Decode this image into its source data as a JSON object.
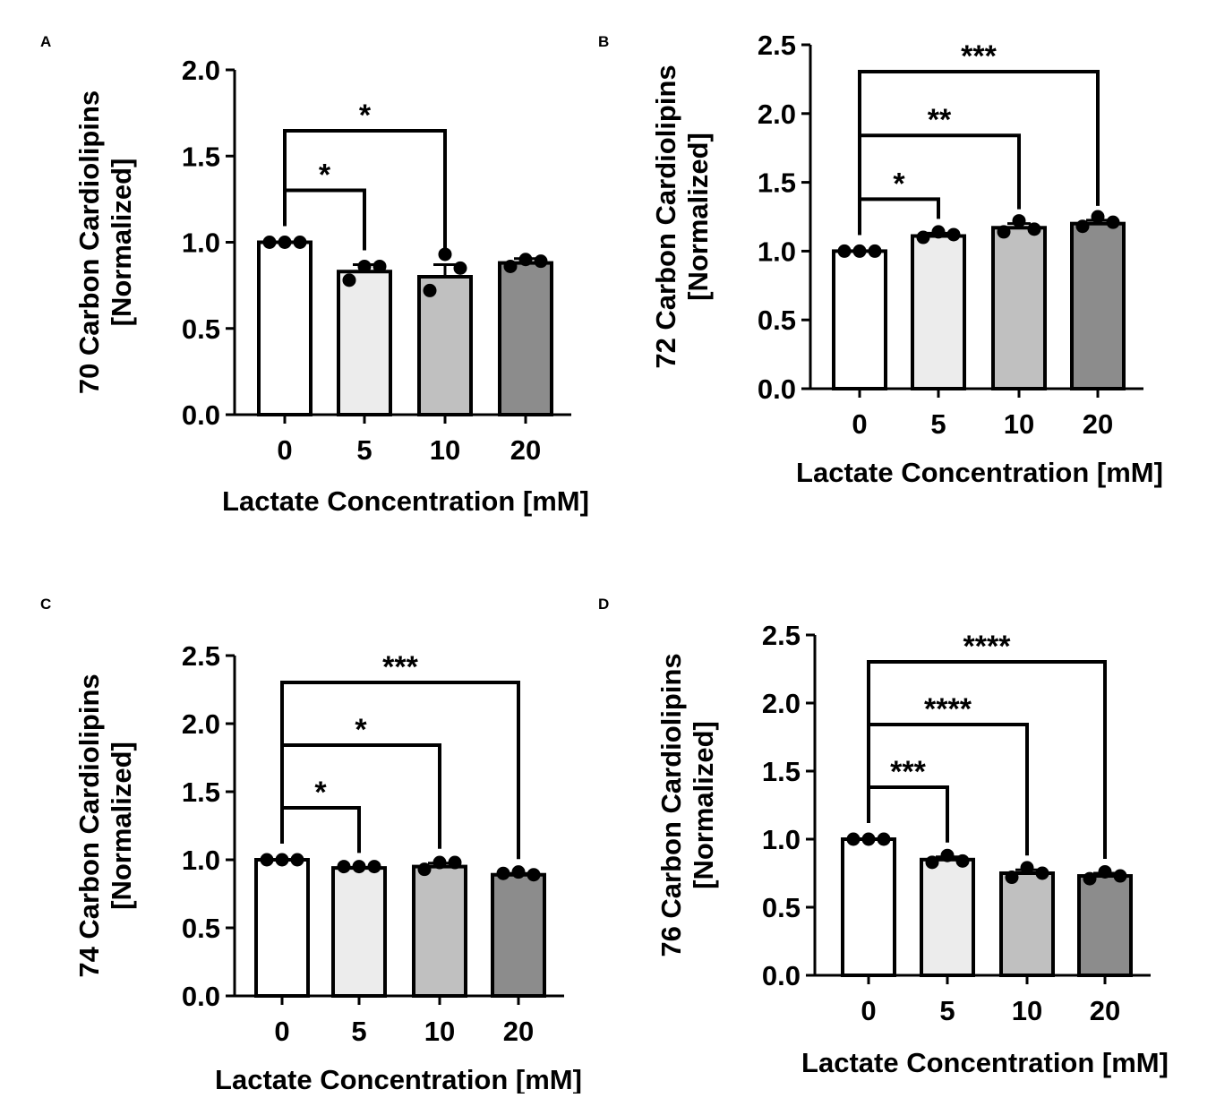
{
  "chart_data": [
    {
      "panel": "A",
      "type": "bar",
      "categories": [
        "0",
        "5",
        "10",
        "20"
      ],
      "values": [
        1.0,
        0.83,
        0.8,
        0.88
      ],
      "errors": [
        0.0,
        0.04,
        0.07,
        0.025
      ],
      "points": [
        [
          1.0,
          1.0,
          1.0
        ],
        [
          0.78,
          0.86,
          0.86
        ],
        [
          0.72,
          0.93,
          0.85
        ],
        [
          0.86,
          0.9,
          0.89
        ]
      ],
      "fill_colors": [
        "#ffffff",
        "#ececec",
        "#c0c0c0",
        "#8c8c8c"
      ],
      "ylabel": [
        "70 Carbon Cardiolipins",
        "[Normalized]"
      ],
      "xlabel": "Lactate Concentration [mM]",
      "ylim": [
        0,
        2.0
      ],
      "yticks": [
        "0.0",
        "0.5",
        "1.0",
        "1.5",
        "2.0"
      ],
      "significance": [
        {
          "from": "0",
          "to": "5",
          "label": "*"
        },
        {
          "from": "0",
          "to": "10",
          "label": "*"
        }
      ]
    },
    {
      "panel": "B",
      "type": "bar",
      "categories": [
        "0",
        "5",
        "10",
        "20"
      ],
      "values": [
        1.0,
        1.11,
        1.17,
        1.2
      ],
      "errors": [
        0.0,
        0.02,
        0.03,
        0.025
      ],
      "points": [
        [
          1.0,
          1.0,
          1.0
        ],
        [
          1.1,
          1.14,
          1.12
        ],
        [
          1.14,
          1.22,
          1.16
        ],
        [
          1.18,
          1.25,
          1.21
        ]
      ],
      "fill_colors": [
        "#ffffff",
        "#ececec",
        "#c0c0c0",
        "#8c8c8c"
      ],
      "ylabel": [
        "72 Carbon Cardiolipins",
        "[Normalized]"
      ],
      "xlabel": "Lactate Concentration [mM]",
      "ylim": [
        0,
        2.5
      ],
      "yticks": [
        "0.0",
        "0.5",
        "1.0",
        "1.5",
        "2.0",
        "2.5"
      ],
      "significance": [
        {
          "from": "0",
          "to": "5",
          "label": "*"
        },
        {
          "from": "0",
          "to": "10",
          "label": "**"
        },
        {
          "from": "0",
          "to": "20",
          "label": "***"
        }
      ]
    },
    {
      "panel": "C",
      "type": "bar",
      "categories": [
        "0",
        "5",
        "10",
        "20"
      ],
      "values": [
        1.0,
        0.94,
        0.95,
        0.89
      ],
      "errors": [
        0.0,
        0.005,
        0.025,
        0.01
      ],
      "points": [
        [
          1.0,
          1.0,
          1.0
        ],
        [
          0.95,
          0.95,
          0.95
        ],
        [
          0.93,
          0.98,
          0.98
        ],
        [
          0.9,
          0.91,
          0.89
        ]
      ],
      "fill_colors": [
        "#ffffff",
        "#ececec",
        "#c0c0c0",
        "#8c8c8c"
      ],
      "ylabel": [
        "74 Carbon Cardiolipins",
        "[Normalized]"
      ],
      "xlabel": "Lactate Concentration [mM]",
      "ylim": [
        0,
        2.5
      ],
      "yticks": [
        "0.0",
        "0.5",
        "1.0",
        "1.5",
        "2.0",
        "2.5"
      ],
      "significance": [
        {
          "from": "0",
          "to": "5",
          "label": "*"
        },
        {
          "from": "0",
          "to": "10",
          "label": "*"
        },
        {
          "from": "0",
          "to": "20",
          "label": "***"
        }
      ]
    },
    {
      "panel": "D",
      "type": "bar",
      "categories": [
        "0",
        "5",
        "10",
        "20"
      ],
      "values": [
        1.0,
        0.85,
        0.75,
        0.73
      ],
      "errors": [
        0.0,
        0.02,
        0.025,
        0.02
      ],
      "points": [
        [
          1.0,
          1.0,
          1.0
        ],
        [
          0.83,
          0.88,
          0.84
        ],
        [
          0.72,
          0.79,
          0.75
        ],
        [
          0.71,
          0.76,
          0.73
        ]
      ],
      "fill_colors": [
        "#ffffff",
        "#ececec",
        "#c0c0c0",
        "#8c8c8c"
      ],
      "ylabel": [
        "76 Carbon Cardiolipins",
        "[Normalized]"
      ],
      "xlabel": "Lactate Concentration [mM]",
      "ylim": [
        0,
        2.5
      ],
      "yticks": [
        "0.0",
        "0.5",
        "1.0",
        "1.5",
        "2.0",
        "2.5"
      ],
      "significance": [
        {
          "from": "0",
          "to": "5",
          "label": "***"
        },
        {
          "from": "0",
          "to": "10",
          "label": "****"
        },
        {
          "from": "0",
          "to": "20",
          "label": "****"
        }
      ]
    }
  ]
}
